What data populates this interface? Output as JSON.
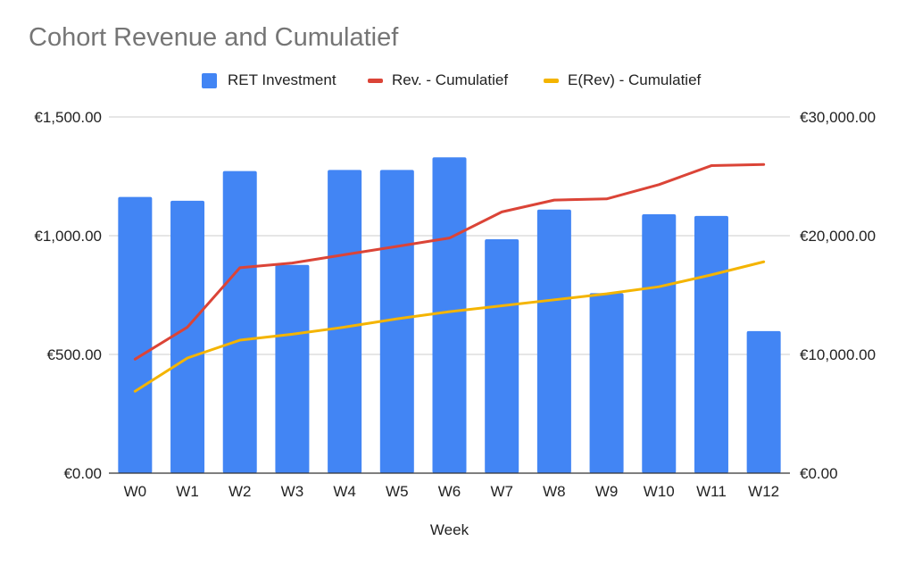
{
  "chart_data": {
    "type": "bar",
    "title": "Cohort Revenue and Cumulatief",
    "xlabel": "Week",
    "ylabel": "",
    "y2label": "",
    "categories": [
      "W0",
      "W1",
      "W2",
      "W3",
      "W4",
      "W5",
      "W6",
      "W7",
      "W8",
      "W9",
      "W10",
      "W11",
      "W12"
    ],
    "ylim": [
      0,
      1500
    ],
    "y2lim": [
      0,
      30000
    ],
    "yticks": [
      "€0.00",
      "€500.00",
      "€1,000.00",
      "€1,500.00"
    ],
    "y2ticks": [
      "€0.00",
      "€10,000.00",
      "€20,000.00",
      "€30,000.00"
    ],
    "grid": true,
    "legend_position": "top",
    "series": [
      {
        "name": "RET Investment",
        "type": "bar",
        "axis": "left",
        "color": "#4285f4",
        "values": [
          1163,
          1147,
          1272,
          877,
          1277,
          1277,
          1330,
          985,
          1110,
          758,
          1090,
          1083,
          598
        ]
      },
      {
        "name": "Rev. - Cumulatief",
        "type": "line",
        "axis": "right",
        "color": "#db4437",
        "values": [
          9600,
          12300,
          17300,
          17700,
          18400,
          19100,
          19800,
          22000,
          23000,
          23100,
          24300,
          25900,
          26000
        ]
      },
      {
        "name": "E(Rev) - Cumulatief",
        "type": "line",
        "axis": "right",
        "color": "#f4b400",
        "values": [
          6900,
          9700,
          11200,
          11700,
          12300,
          13000,
          13600,
          14100,
          14600,
          15100,
          15700,
          16700,
          17800
        ]
      }
    ]
  }
}
